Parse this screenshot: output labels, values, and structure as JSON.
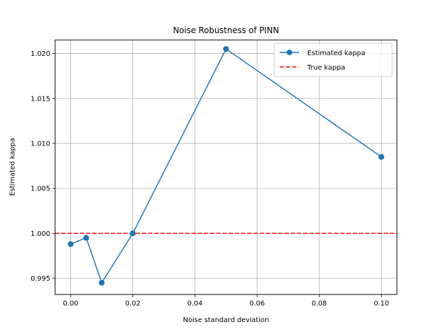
{
  "chart_data": {
    "type": "line",
    "title": "Noise Robustness of PINN",
    "xlabel": "Noise standard deviation",
    "ylabel": "Estimated kappa",
    "xlim": [
      -0.005,
      0.105
    ],
    "ylim": [
      0.9932,
      1.0215
    ],
    "xticks": [
      0.0,
      0.02,
      0.04,
      0.06,
      0.08,
      0.1
    ],
    "xtick_labels": [
      "0.00",
      "0.02",
      "0.04",
      "0.06",
      "0.08",
      "0.10"
    ],
    "yticks": [
      0.995,
      1.0,
      1.005,
      1.01,
      1.015,
      1.02
    ],
    "ytick_labels": [
      "0.995",
      "1.000",
      "1.005",
      "1.010",
      "1.015",
      "1.020"
    ],
    "grid": true,
    "legend_position": "top-right",
    "series": [
      {
        "name": "Estimated kappa",
        "style": "line-with-circle-markers",
        "color": "#1f77b4",
        "x": [
          0.0,
          0.005,
          0.01,
          0.02,
          0.05,
          0.1
        ],
        "y": [
          0.9988,
          0.9995,
          0.9945,
          1.0,
          1.0205,
          1.0085
        ]
      },
      {
        "name": "True kappa",
        "style": "dashed-horizontal",
        "color": "#ff0000",
        "y": 1.0
      }
    ]
  }
}
